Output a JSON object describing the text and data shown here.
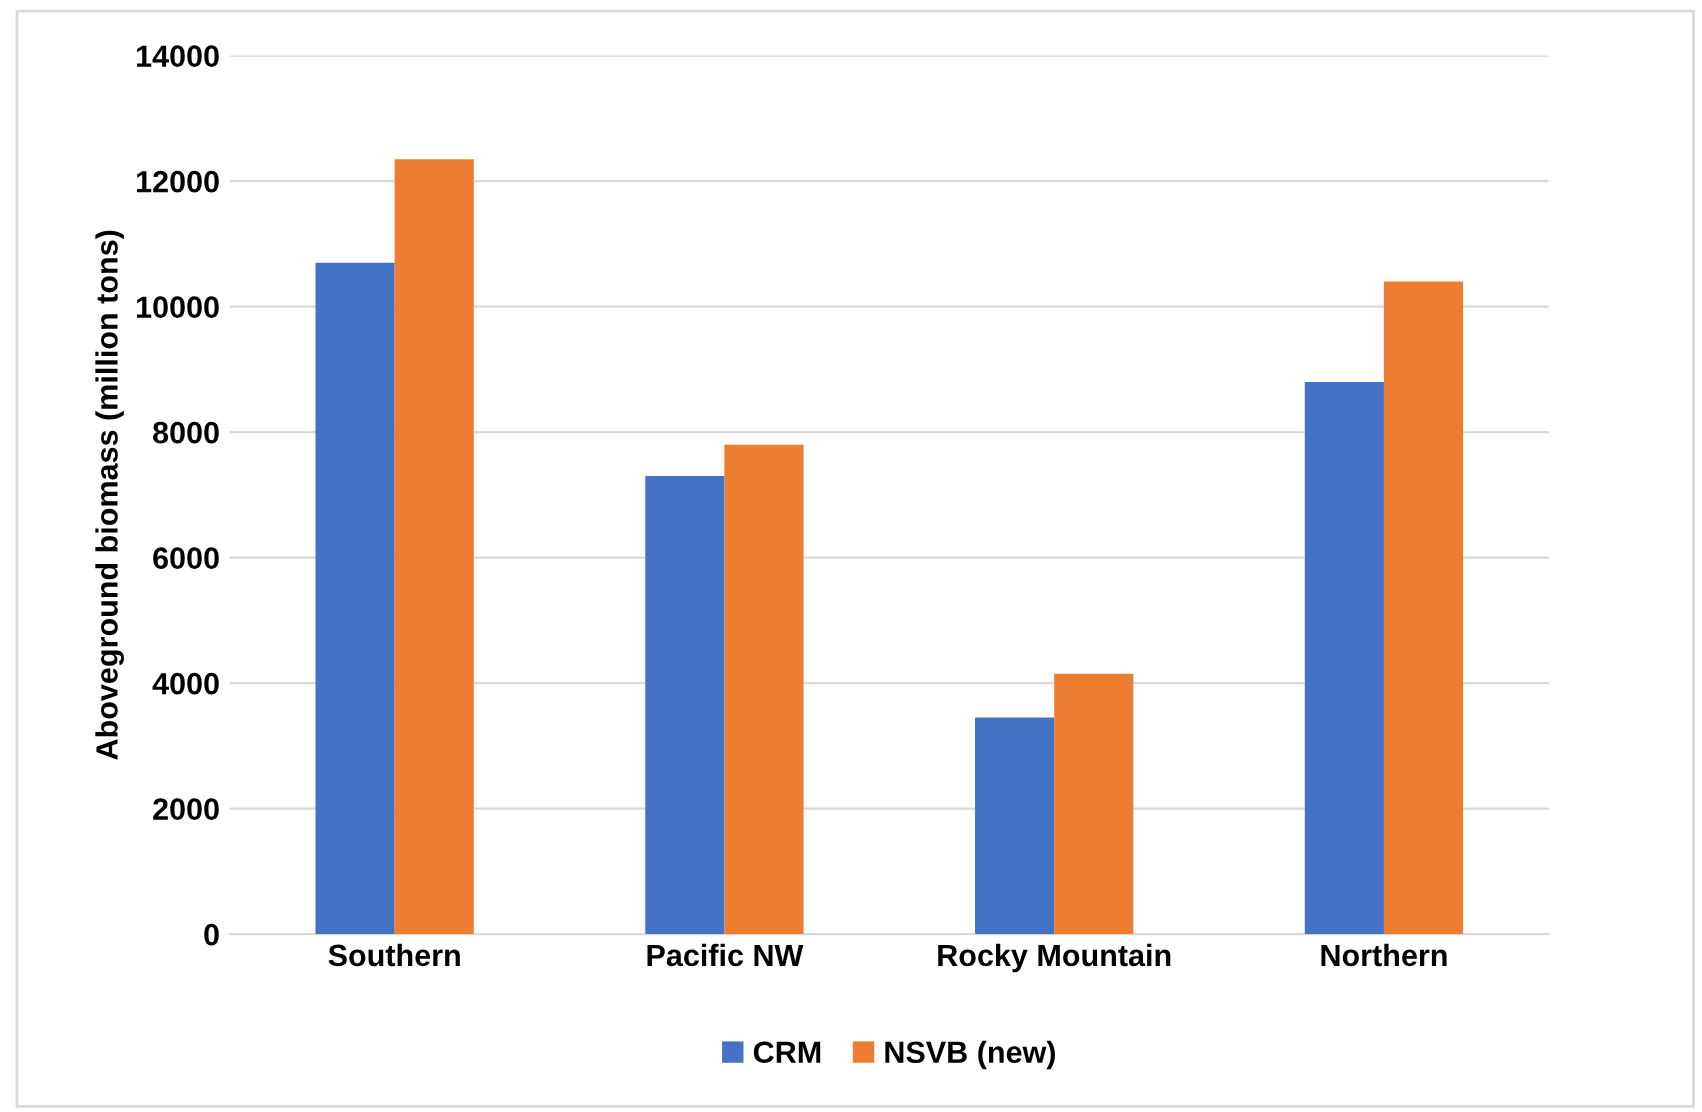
{
  "chart_data": {
    "type": "bar",
    "ylabel": "Aboveground biomass (million tons)",
    "categories": [
      "Southern",
      "Pacific NW",
      "Rocky Mountain",
      "Northern"
    ],
    "series": [
      {
        "name": "CRM",
        "color": "#4472c4",
        "values": [
          10700,
          7300,
          3450,
          8800
        ]
      },
      {
        "name": "NSVB (new)",
        "color": "#ed7d31",
        "values": [
          12350,
          7800,
          4150,
          10400
        ]
      }
    ],
    "ylim": [
      0,
      14000
    ],
    "yticks": [
      0,
      2000,
      4000,
      6000,
      8000,
      10000,
      12000,
      14000
    ],
    "grid": "y",
    "legend": "bottom"
  }
}
